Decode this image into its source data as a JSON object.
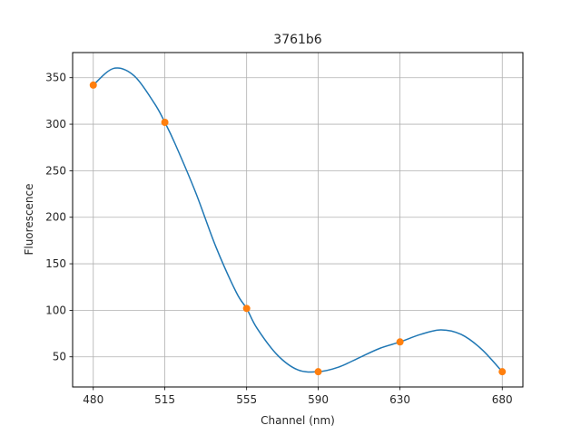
{
  "chart_data": {
    "type": "line",
    "title": "3761b6",
    "xlabel": "Channel (nm)",
    "ylabel": "Fluorescence",
    "x_ticks": [
      480,
      515,
      555,
      590,
      630,
      680
    ],
    "y_ticks": [
      50,
      100,
      150,
      200,
      250,
      300,
      350
    ],
    "xlim": [
      469.9,
      690.1
    ],
    "ylim": [
      17.6,
      377.0
    ],
    "grid": true,
    "series": [
      {
        "kind": "smooth-line",
        "color": "#1f77b4",
        "x": [
          480,
          490,
          500,
          510,
          515,
          520,
          530,
          540,
          550,
          555,
          560,
          570,
          580,
          590,
          600,
          610,
          620,
          630,
          640,
          650,
          660,
          670,
          680
        ],
        "y": [
          342,
          360,
          352,
          322,
          302,
          279,
          227,
          168,
          119,
          102,
          81,
          52,
          36,
          34,
          39,
          49,
          59,
          66,
          74,
          79,
          74,
          58,
          34
        ]
      },
      {
        "kind": "points",
        "color": "#ff7f0e",
        "x": [
          480,
          515,
          555,
          590,
          630,
          680
        ],
        "y": [
          342,
          302,
          102,
          34,
          66,
          34
        ]
      }
    ]
  }
}
